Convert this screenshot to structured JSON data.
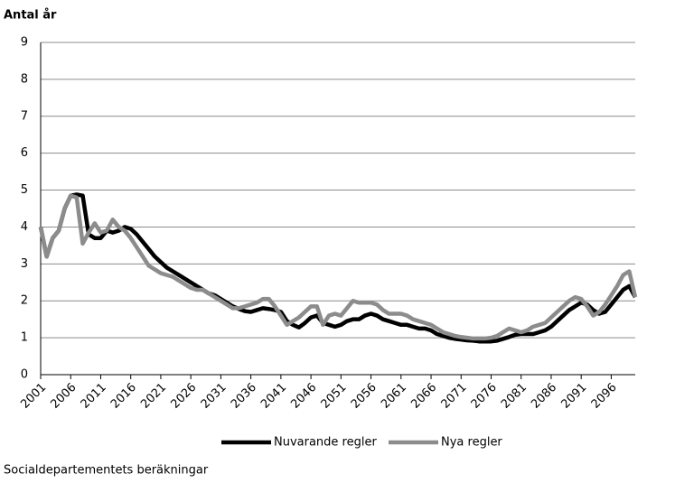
{
  "chart_data": {
    "type": "line",
    "title": "Antal år",
    "source": "Socialdepartementets beräkningar",
    "x": [
      2001,
      2002,
      2003,
      2004,
      2005,
      2006,
      2007,
      2008,
      2009,
      2010,
      2011,
      2012,
      2013,
      2014,
      2015,
      2016,
      2017,
      2018,
      2019,
      2020,
      2021,
      2022,
      2023,
      2024,
      2025,
      2026,
      2027,
      2028,
      2029,
      2030,
      2031,
      2032,
      2033,
      2034,
      2035,
      2036,
      2037,
      2038,
      2039,
      2040,
      2041,
      2042,
      2043,
      2044,
      2045,
      2046,
      2047,
      2048,
      2049,
      2050,
      2051,
      2052,
      2053,
      2054,
      2055,
      2056,
      2057,
      2058,
      2059,
      2060,
      2061,
      2062,
      2063,
      2064,
      2065,
      2066,
      2067,
      2068,
      2069,
      2070,
      2071,
      2072,
      2073,
      2074,
      2075,
      2076,
      2077,
      2078,
      2079,
      2080,
      2081,
      2082,
      2083,
      2084,
      2085,
      2086,
      2087,
      2088,
      2089,
      2090,
      2091,
      2092,
      2093,
      2094,
      2095,
      2096,
      2097,
      2098,
      2099,
      2100
    ],
    "series": [
      {
        "name": "Nuvarande regler",
        "color": "#000000",
        "values": [
          4.0,
          3.2,
          3.7,
          3.9,
          4.5,
          4.85,
          4.88,
          4.85,
          3.8,
          3.7,
          3.7,
          3.9,
          3.85,
          3.9,
          4.0,
          3.95,
          3.8,
          3.6,
          3.4,
          3.2,
          3.05,
          2.9,
          2.8,
          2.7,
          2.6,
          2.5,
          2.4,
          2.3,
          2.2,
          2.15,
          2.05,
          1.95,
          1.85,
          1.78,
          1.72,
          1.7,
          1.75,
          1.8,
          1.78,
          1.75,
          1.7,
          1.45,
          1.35,
          1.28,
          1.4,
          1.55,
          1.6,
          1.4,
          1.35,
          1.3,
          1.35,
          1.45,
          1.5,
          1.5,
          1.6,
          1.65,
          1.6,
          1.5,
          1.45,
          1.4,
          1.35,
          1.35,
          1.3,
          1.25,
          1.25,
          1.2,
          1.1,
          1.05,
          1.0,
          0.97,
          0.95,
          0.93,
          0.92,
          0.9,
          0.9,
          0.9,
          0.92,
          0.97,
          1.02,
          1.08,
          1.1,
          1.1,
          1.1,
          1.15,
          1.2,
          1.3,
          1.45,
          1.6,
          1.75,
          1.85,
          1.95,
          1.9,
          1.75,
          1.65,
          1.7,
          1.9,
          2.1,
          2.3,
          2.4,
          2.1
        ]
      },
      {
        "name": "Nya regler",
        "color": "#8c8c8c",
        "values": [
          4.0,
          3.2,
          3.7,
          3.9,
          4.5,
          4.85,
          4.8,
          3.55,
          3.85,
          4.1,
          3.85,
          3.9,
          4.2,
          4.0,
          3.9,
          3.7,
          3.45,
          3.2,
          2.95,
          2.85,
          2.75,
          2.7,
          2.65,
          2.55,
          2.45,
          2.35,
          2.3,
          2.3,
          2.2,
          2.1,
          2.0,
          1.9,
          1.8,
          1.8,
          1.85,
          1.9,
          1.95,
          2.05,
          2.05,
          1.85,
          1.6,
          1.35,
          1.45,
          1.55,
          1.7,
          1.85,
          1.85,
          1.35,
          1.6,
          1.65,
          1.6,
          1.8,
          2.0,
          1.95,
          1.95,
          1.95,
          1.9,
          1.75,
          1.65,
          1.65,
          1.65,
          1.6,
          1.5,
          1.45,
          1.4,
          1.35,
          1.25,
          1.15,
          1.1,
          1.05,
          1.02,
          1.0,
          0.98,
          0.98,
          0.98,
          1.0,
          1.05,
          1.15,
          1.25,
          1.2,
          1.15,
          1.2,
          1.3,
          1.35,
          1.4,
          1.55,
          1.7,
          1.85,
          2.0,
          2.1,
          2.05,
          1.85,
          1.6,
          1.7,
          1.9,
          2.15,
          2.4,
          2.7,
          2.8,
          2.1
        ]
      }
    ],
    "xlim": [
      2001,
      2100
    ],
    "xticks": [
      2001,
      2006,
      2011,
      2016,
      2021,
      2026,
      2031,
      2036,
      2041,
      2046,
      2051,
      2056,
      2061,
      2066,
      2071,
      2076,
      2081,
      2086,
      2091,
      2096
    ],
    "ylim": [
      0,
      9
    ],
    "yticks": [
      0,
      1,
      2,
      3,
      4,
      5,
      6,
      7,
      8,
      9
    ],
    "grid": true
  }
}
